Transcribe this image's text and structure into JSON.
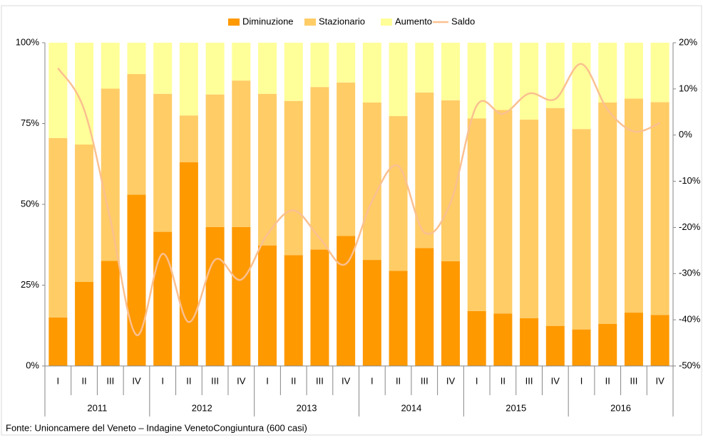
{
  "chart_data": {
    "type": "stacked_bar_line",
    "categories": [
      "I",
      "II",
      "III",
      "IV",
      "I",
      "II",
      "III",
      "IV",
      "I",
      "II",
      "III",
      "IV",
      "I",
      "II",
      "III",
      "IV",
      "I",
      "II",
      "III",
      "IV",
      "I",
      "II",
      "III",
      "IV"
    ],
    "years": [
      "2011",
      "2012",
      "2013",
      "2014",
      "2015",
      "2016"
    ],
    "series": [
      {
        "name": "Diminuzione",
        "color": "#ff9900",
        "values": [
          15,
          26,
          32.5,
          53,
          41.5,
          63,
          43,
          43,
          37.3,
          34.3,
          36,
          40.2,
          32.8,
          29.4,
          36.5,
          32.4,
          17,
          16.2,
          14.8,
          12.4,
          11.3,
          13,
          16.5,
          15.8
        ]
      },
      {
        "name": "Stazionario",
        "color": "#ffcc66",
        "values": [
          55.5,
          42.5,
          53.3,
          37.3,
          42.7,
          14.5,
          41,
          45.3,
          46.9,
          47.7,
          50.3,
          47.5,
          48.7,
          47.9,
          48.1,
          49.8,
          59.6,
          63,
          61.4,
          67.4,
          62,
          68.5,
          66.2,
          65.8
        ]
      },
      {
        "name": "Aumento",
        "color": "#ffff99",
        "values": [
          29.5,
          31.5,
          14.2,
          9.7,
          15.8,
          22.5,
          16,
          11.7,
          15.8,
          18,
          13.7,
          12.3,
          18.5,
          22.7,
          15.4,
          17.8,
          23.4,
          20.8,
          23.8,
          20.2,
          26.7,
          18.5,
          17.3,
          18.4
        ]
      },
      {
        "name": "Saldo",
        "color": "#fac090",
        "axis": "y2",
        "values": [
          14.5,
          5.5,
          -18.3,
          -43.3,
          -25.7,
          -40.5,
          -27,
          -31.3,
          -21.5,
          -16.3,
          -22.3,
          -27.9,
          -14.3,
          -6.7,
          -21.1,
          -14.6,
          6.4,
          4.6,
          9,
          7.8,
          15.4,
          5.5,
          0.8,
          2.6
        ]
      }
    ],
    "ylim": [
      0,
      100
    ],
    "yticks": [
      {
        "value": 0,
        "label": "0%"
      },
      {
        "value": 25,
        "label": "25%"
      },
      {
        "value": 50,
        "label": "50%"
      },
      {
        "value": 75,
        "label": "75%"
      },
      {
        "value": 100,
        "label": "100%"
      }
    ],
    "y2lim": [
      -50,
      20
    ],
    "y2ticks": [
      {
        "value": -50,
        "label": "-50%"
      },
      {
        "value": -40,
        "label": "-40%"
      },
      {
        "value": -30,
        "label": "-30%"
      },
      {
        "value": -20,
        "label": "-20%"
      },
      {
        "value": -10,
        "label": "-10%"
      },
      {
        "value": 0,
        "label": "0%"
      },
      {
        "value": 10,
        "label": "10%"
      },
      {
        "value": 20,
        "label": "20%"
      }
    ],
    "legend": "top",
    "source": "Fonte: Unioncamere del Veneto – Indagine VenetoCongiuntura (600 casi)"
  }
}
